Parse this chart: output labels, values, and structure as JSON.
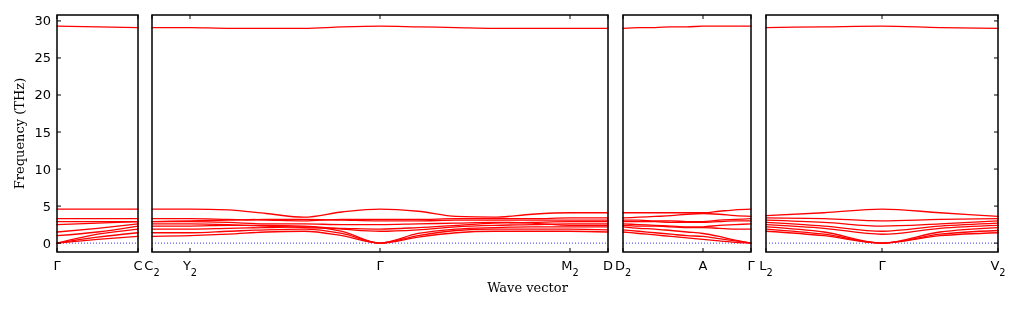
{
  "chart_data": [
    {
      "type": "line",
      "ylabel": "Frequency (THz)",
      "categories": [
        "Γ",
        null,
        "C"
      ],
      "ylim": [
        -1.2,
        30.8
      ],
      "yticks": [
        0,
        5,
        10,
        15,
        20,
        25,
        30
      ],
      "grid": false,
      "marker": "none",
      "line_style": "solid",
      "ref_lines": [
        {
          "axis": "y",
          "value": 0,
          "color": "#0000ff",
          "line_style": "dotted"
        }
      ],
      "series": [
        {
          "color": "#ff0000",
          "values": [
            0,
            0.5,
            0.9
          ]
        },
        {
          "color": "#ff0000",
          "values": [
            0,
            0.8,
            1.4
          ]
        },
        {
          "color": "#ff0000",
          "values": [
            0,
            1.2,
            1.9
          ]
        },
        {
          "color": "#ff0000",
          "values": [
            1.0,
            1.5,
            2.3
          ]
        },
        {
          "color": "#ff0000",
          "values": [
            1.5,
            2.0,
            2.6
          ]
        },
        {
          "color": "#ff0000",
          "values": [
            2.5,
            2.7,
            2.9
          ]
        },
        {
          "color": "#ff0000",
          "values": [
            2.9,
            2.9,
            2.9
          ]
        },
        {
          "color": "#ff0000",
          "values": [
            3.3,
            3.3,
            3.3
          ]
        },
        {
          "color": "#ff0000",
          "values": [
            4.6,
            4.6,
            4.6
          ]
        },
        {
          "color": "#ff0000",
          "values": [
            29.3,
            29.2,
            29.1
          ]
        }
      ]
    },
    {
      "type": "line",
      "xlabel": "Wave vector",
      "categories": [
        "C$_{2}$",
        "Y$_{2}$",
        null,
        null,
        null,
        null,
        "Γ",
        null,
        null,
        null,
        null,
        "M$_{2}$",
        "D"
      ],
      "ylim": [
        -1.2,
        30.8
      ],
      "yticks": [
        0,
        5,
        10,
        15,
        20,
        25,
        30
      ],
      "tick_labels": "x",
      "grid": false,
      "marker": "none",
      "line_style": "solid",
      "ref_lines": [
        {
          "axis": "y",
          "value": 0,
          "color": "#0000ff",
          "line_style": "dotted"
        }
      ],
      "series": [
        {
          "color": "#ff0000",
          "values": [
            0.9,
            1.0,
            1.2,
            1.5,
            1.6,
            1.0,
            0,
            0.8,
            1.4,
            1.6,
            1.6,
            1.6,
            1.5
          ]
        },
        {
          "color": "#ff0000",
          "values": [
            1.4,
            1.4,
            1.6,
            1.8,
            1.9,
            1.3,
            0,
            1.0,
            1.7,
            1.9,
            1.9,
            1.9,
            1.8
          ]
        },
        {
          "color": "#ff0000",
          "values": [
            1.9,
            1.9,
            2.0,
            2.1,
            2.2,
            1.6,
            0,
            1.3,
            1.9,
            2.1,
            2.2,
            2.2,
            2.2
          ]
        },
        {
          "color": "#ff0000",
          "values": [
            2.3,
            2.3,
            2.4,
            2.4,
            2.3,
            1.9,
            1.6,
            1.8,
            2.2,
            2.4,
            2.5,
            2.6,
            2.6
          ]
        },
        {
          "color": "#ff0000",
          "values": [
            2.6,
            2.6,
            2.5,
            2.3,
            2.1,
            2.0,
            1.9,
            2.1,
            2.4,
            2.7,
            2.8,
            2.9,
            2.9
          ]
        },
        {
          "color": "#ff0000",
          "values": [
            2.9,
            2.9,
            2.8,
            2.6,
            2.6,
            2.5,
            2.5,
            2.6,
            2.7,
            2.8,
            2.7,
            2.4,
            2.4
          ]
        },
        {
          "color": "#ff0000",
          "values": [
            2.9,
            3.0,
            3.1,
            3.2,
            3.2,
            3.1,
            3.0,
            3.0,
            3.1,
            3.1,
            3.1,
            3.1,
            3.1
          ]
        },
        {
          "color": "#ff0000",
          "values": [
            3.3,
            3.3,
            3.2,
            3.1,
            3.0,
            3.2,
            3.2,
            3.2,
            3.3,
            3.3,
            3.3,
            3.4,
            3.4
          ]
        },
        {
          "color": "#ff0000",
          "values": [
            4.6,
            4.6,
            4.5,
            4.0,
            3.5,
            4.2,
            4.6,
            4.3,
            3.6,
            3.5,
            3.9,
            4.1,
            4.1
          ]
        },
        {
          "color": "#ff0000",
          "values": [
            29.1,
            29.1,
            29.0,
            29.0,
            29.0,
            29.2,
            29.3,
            29.2,
            29.1,
            29.0,
            29.0,
            29.0,
            29.0
          ]
        }
      ]
    },
    {
      "type": "line",
      "categories": [
        "D$_{2}$",
        null,
        null,
        null,
        null,
        "A",
        null,
        null,
        "Γ"
      ],
      "ylim": [
        -1.2,
        30.8
      ],
      "yticks": [
        0,
        5,
        10,
        15,
        20,
        25,
        30
      ],
      "tick_labels": "x",
      "grid": false,
      "marker": "none",
      "line_style": "solid",
      "ref_lines": [
        {
          "axis": "y",
          "value": 0,
          "color": "#0000ff",
          "line_style": "dotted"
        }
      ],
      "series": [
        {
          "color": "#ff0000",
          "values": [
            1.5,
            1.3,
            1.1,
            0.9,
            0.7,
            0.5,
            0.3,
            0.1,
            0
          ]
        },
        {
          "color": "#ff0000",
          "values": [
            1.8,
            1.6,
            1.4,
            1.2,
            1.0,
            0.9,
            0.6,
            0.3,
            0
          ]
        },
        {
          "color": "#ff0000",
          "values": [
            2.2,
            2.0,
            1.9,
            1.7,
            1.5,
            1.3,
            0.9,
            0.4,
            0
          ]
        },
        {
          "color": "#ff0000",
          "values": [
            2.4,
            2.3,
            2.3,
            2.2,
            2.1,
            2.1,
            2.0,
            1.9,
            1.9
          ]
        },
        {
          "color": "#ff0000",
          "values": [
            2.6,
            2.5,
            2.4,
            2.3,
            2.2,
            2.2,
            2.4,
            2.5,
            2.6
          ]
        },
        {
          "color": "#ff0000",
          "values": [
            2.9,
            2.9,
            2.9,
            2.8,
            2.8,
            2.8,
            2.9,
            3.0,
            3.0
          ]
        },
        {
          "color": "#ff0000",
          "values": [
            3.1,
            3.1,
            3.0,
            3.0,
            2.9,
            2.9,
            3.1,
            3.2,
            3.3
          ]
        },
        {
          "color": "#ff0000",
          "values": [
            3.4,
            3.5,
            3.6,
            3.7,
            3.9,
            4.0,
            3.9,
            3.7,
            3.6
          ]
        },
        {
          "color": "#ff0000",
          "values": [
            4.1,
            4.1,
            4.1,
            4.1,
            4.1,
            4.1,
            4.3,
            4.5,
            4.6
          ]
        },
        {
          "color": "#ff0000",
          "values": [
            29.0,
            29.1,
            29.1,
            29.2,
            29.2,
            29.3,
            29.3,
            29.3,
            29.3
          ]
        }
      ]
    },
    {
      "type": "line",
      "categories": [
        "L$_{2}$",
        null,
        "Γ",
        null,
        "V$_{2}$"
      ],
      "ylim": [
        -1.2,
        30.8
      ],
      "yticks": [
        0,
        5,
        10,
        15,
        20,
        25,
        30
      ],
      "tick_labels": "x",
      "grid": false,
      "marker": "none",
      "line_style": "solid",
      "ref_lines": [
        {
          "axis": "y",
          "value": 0,
          "color": "#0000ff",
          "line_style": "dotted"
        }
      ],
      "series": [
        {
          "color": "#ff0000",
          "values": [
            1.6,
            1.0,
            0,
            1.0,
            1.4
          ]
        },
        {
          "color": "#ff0000",
          "values": [
            1.9,
            1.2,
            0,
            1.2,
            1.7
          ]
        },
        {
          "color": "#ff0000",
          "values": [
            2.2,
            1.5,
            0,
            1.5,
            2.1
          ]
        },
        {
          "color": "#ff0000",
          "values": [
            2.5,
            2.0,
            1.2,
            2.0,
            2.4
          ]
        },
        {
          "color": "#ff0000",
          "values": [
            2.8,
            2.3,
            1.6,
            2.3,
            2.7
          ]
        },
        {
          "color": "#ff0000",
          "values": [
            3.1,
            2.8,
            2.3,
            2.6,
            3.0
          ]
        },
        {
          "color": "#ff0000",
          "values": [
            3.4,
            3.3,
            3.0,
            3.2,
            3.3
          ]
        },
        {
          "color": "#ff0000",
          "values": [
            3.7,
            4.1,
            4.6,
            4.1,
            3.6
          ]
        },
        {
          "color": "#ff0000",
          "values": [
            29.1,
            29.2,
            29.3,
            29.1,
            29.0
          ]
        }
      ]
    }
  ]
}
